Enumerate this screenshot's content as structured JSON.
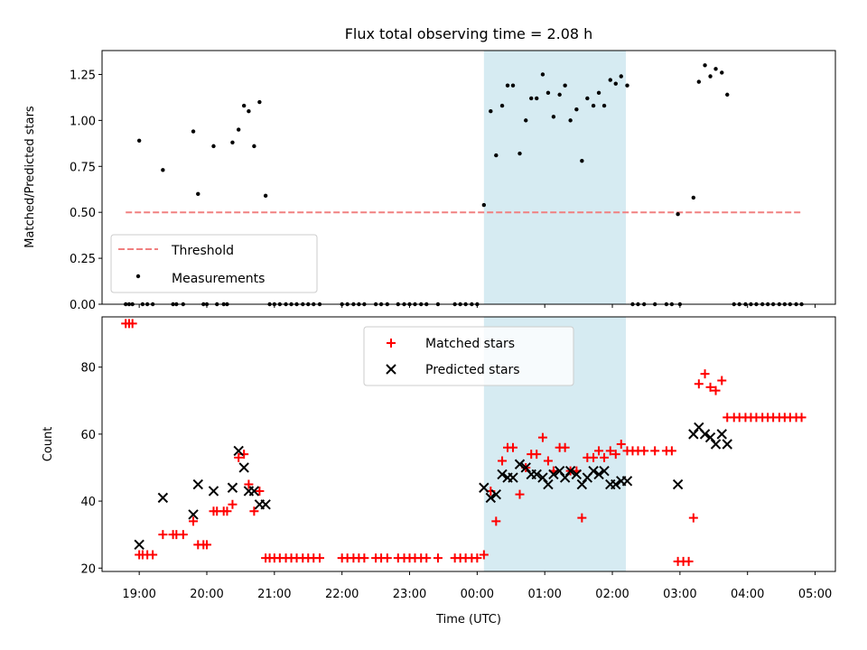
{
  "chart_data": [
    {
      "type": "scatter",
      "title": "Flux total observing time = 2.08 h",
      "xlabel": "",
      "ylabel": "Matched/Predicted stars",
      "xlim": [
        18.45,
        5.3
      ],
      "ylim": [
        0,
        1.38
      ],
      "yticks": [
        0.0,
        0.25,
        0.5,
        0.75,
        1.0,
        1.25
      ],
      "ytick_labels": [
        "0.00",
        "0.25",
        "0.50",
        "0.75",
        "1.00",
        "1.25"
      ],
      "shaded_interval": [
        0.1,
        2.2
      ],
      "threshold": {
        "name": "Threshold",
        "value": 0.5,
        "x_range": [
          18.8,
          4.8
        ],
        "color": "#f08080"
      },
      "legend": {
        "position": "lower-left",
        "entries": [
          "Threshold",
          "Measurements"
        ]
      },
      "series": [
        {
          "name": "Measurements",
          "color": "#000000",
          "points": [
            [
              18.8,
              0
            ],
            [
              18.85,
              0
            ],
            [
              18.9,
              0
            ],
            [
              19.0,
              0.89
            ],
            [
              19.05,
              0
            ],
            [
              19.12,
              0
            ],
            [
              19.2,
              0
            ],
            [
              19.35,
              0.73
            ],
            [
              19.5,
              0
            ],
            [
              19.55,
              0
            ],
            [
              19.65,
              0
            ],
            [
              19.8,
              0.94
            ],
            [
              19.87,
              0.6
            ],
            [
              19.95,
              0
            ],
            [
              20.0,
              0
            ],
            [
              20.1,
              0.86
            ],
            [
              20.15,
              0
            ],
            [
              20.25,
              0
            ],
            [
              20.3,
              0
            ],
            [
              20.38,
              0.88
            ],
            [
              20.47,
              0.95
            ],
            [
              20.55,
              1.08
            ],
            [
              20.62,
              1.05
            ],
            [
              20.7,
              0.86
            ],
            [
              20.78,
              1.1
            ],
            [
              20.87,
              0.59
            ],
            [
              20.93,
              0
            ],
            [
              21.0,
              0
            ],
            [
              21.08,
              0
            ],
            [
              21.17,
              0
            ],
            [
              21.25,
              0
            ],
            [
              21.33,
              0
            ],
            [
              21.42,
              0
            ],
            [
              21.5,
              0
            ],
            [
              21.58,
              0
            ],
            [
              21.67,
              0
            ],
            [
              22.0,
              0
            ],
            [
              22.08,
              0
            ],
            [
              22.17,
              0
            ],
            [
              22.25,
              0
            ],
            [
              22.33,
              0
            ],
            [
              22.5,
              0
            ],
            [
              22.58,
              0
            ],
            [
              22.67,
              0
            ],
            [
              22.83,
              0
            ],
            [
              22.92,
              0
            ],
            [
              23.0,
              0
            ],
            [
              23.08,
              0
            ],
            [
              23.17,
              0
            ],
            [
              23.25,
              0
            ],
            [
              23.42,
              0
            ],
            [
              23.67,
              0
            ],
            [
              23.75,
              0
            ],
            [
              23.83,
              0
            ],
            [
              23.92,
              0
            ],
            [
              24.0,
              0
            ],
            [
              0.1,
              0.54
            ],
            [
              0.2,
              1.05
            ],
            [
              0.28,
              0.81
            ],
            [
              0.37,
              1.08
            ],
            [
              0.45,
              1.19
            ],
            [
              0.53,
              1.19
            ],
            [
              0.63,
              0.82
            ],
            [
              0.72,
              1.0
            ],
            [
              0.8,
              1.12
            ],
            [
              0.88,
              1.12
            ],
            [
              0.97,
              1.25
            ],
            [
              1.05,
              1.15
            ],
            [
              1.13,
              1.02
            ],
            [
              1.22,
              1.14
            ],
            [
              1.3,
              1.19
            ],
            [
              1.38,
              1.0
            ],
            [
              1.47,
              1.06
            ],
            [
              1.55,
              0.78
            ],
            [
              1.63,
              1.12
            ],
            [
              1.72,
              1.08
            ],
            [
              1.8,
              1.15
            ],
            [
              1.88,
              1.08
            ],
            [
              1.97,
              1.22
            ],
            [
              2.05,
              1.2
            ],
            [
              2.13,
              1.24
            ],
            [
              2.22,
              1.19
            ],
            [
              2.3,
              0
            ],
            [
              2.38,
              0
            ],
            [
              2.47,
              0
            ],
            [
              2.63,
              0
            ],
            [
              2.8,
              0
            ],
            [
              2.88,
              0
            ],
            [
              2.97,
              0.49
            ],
            [
              3.0,
              0
            ],
            [
              3.2,
              0.58
            ],
            [
              3.28,
              1.21
            ],
            [
              3.37,
              1.3
            ],
            [
              3.45,
              1.24
            ],
            [
              3.53,
              1.28
            ],
            [
              3.62,
              1.26
            ],
            [
              3.7,
              1.14
            ],
            [
              3.8,
              0
            ],
            [
              3.88,
              0
            ],
            [
              3.97,
              0
            ],
            [
              4.05,
              0
            ],
            [
              4.13,
              0
            ],
            [
              4.22,
              0
            ],
            [
              4.3,
              0
            ],
            [
              4.38,
              0
            ],
            [
              4.47,
              0
            ],
            [
              4.55,
              0
            ],
            [
              4.63,
              0
            ],
            [
              4.72,
              0
            ],
            [
              4.8,
              0
            ]
          ]
        }
      ]
    },
    {
      "type": "scatter",
      "title": "",
      "xlabel": "Time (UTC)",
      "ylabel": "Count",
      "xlim": [
        18.45,
        5.3
      ],
      "ylim": [
        19,
        95
      ],
      "yticks": [
        20,
        40,
        60,
        80
      ],
      "ytick_labels": [
        "20",
        "40",
        "60",
        "80"
      ],
      "xticks": [
        19,
        20,
        21,
        22,
        23,
        0,
        1,
        2,
        3,
        4,
        5
      ],
      "xtick_labels": [
        "19:00",
        "20:00",
        "21:00",
        "22:00",
        "23:00",
        "00:00",
        "01:00",
        "02:00",
        "03:00",
        "04:00",
        "05:00"
      ],
      "shaded_interval": [
        0.1,
        2.2
      ],
      "legend": {
        "position": "top-center",
        "entries": [
          "Matched stars",
          "Predicted stars"
        ]
      },
      "series": [
        {
          "name": "Matched stars",
          "marker": "plus",
          "color": "#ff0000",
          "points": [
            [
              18.8,
              93
            ],
            [
              18.85,
              93
            ],
            [
              18.9,
              93
            ],
            [
              19.0,
              24
            ],
            [
              19.05,
              24
            ],
            [
              19.12,
              24
            ],
            [
              19.2,
              24
            ],
            [
              19.35,
              30
            ],
            [
              19.5,
              30
            ],
            [
              19.55,
              30
            ],
            [
              19.65,
              30
            ],
            [
              19.8,
              34
            ],
            [
              19.87,
              27
            ],
            [
              19.95,
              27
            ],
            [
              20.0,
              27
            ],
            [
              20.1,
              37
            ],
            [
              20.15,
              37
            ],
            [
              20.25,
              37
            ],
            [
              20.3,
              37
            ],
            [
              20.38,
              39
            ],
            [
              20.47,
              53
            ],
            [
              20.55,
              54
            ],
            [
              20.62,
              45
            ],
            [
              20.7,
              37
            ],
            [
              20.78,
              43
            ],
            [
              20.87,
              23
            ],
            [
              20.93,
              23
            ],
            [
              21.0,
              23
            ],
            [
              21.08,
              23
            ],
            [
              21.17,
              23
            ],
            [
              21.25,
              23
            ],
            [
              21.33,
              23
            ],
            [
              21.42,
              23
            ],
            [
              21.5,
              23
            ],
            [
              21.58,
              23
            ],
            [
              21.67,
              23
            ],
            [
              22.0,
              23
            ],
            [
              22.08,
              23
            ],
            [
              22.17,
              23
            ],
            [
              22.25,
              23
            ],
            [
              22.33,
              23
            ],
            [
              22.5,
              23
            ],
            [
              22.58,
              23
            ],
            [
              22.67,
              23
            ],
            [
              22.83,
              23
            ],
            [
              22.92,
              23
            ],
            [
              23.0,
              23
            ],
            [
              23.08,
              23
            ],
            [
              23.17,
              23
            ],
            [
              23.25,
              23
            ],
            [
              23.42,
              23
            ],
            [
              23.67,
              23
            ],
            [
              23.75,
              23
            ],
            [
              23.83,
              23
            ],
            [
              23.92,
              23
            ],
            [
              24.0,
              23
            ],
            [
              0.1,
              24
            ],
            [
              0.2,
              43
            ],
            [
              0.28,
              34
            ],
            [
              0.37,
              52
            ],
            [
              0.45,
              56
            ],
            [
              0.53,
              56
            ],
            [
              0.63,
              42
            ],
            [
              0.72,
              50
            ],
            [
              0.8,
              54
            ],
            [
              0.88,
              54
            ],
            [
              0.97,
              59
            ],
            [
              1.05,
              52
            ],
            [
              1.13,
              49
            ],
            [
              1.22,
              56
            ],
            [
              1.3,
              56
            ],
            [
              1.38,
              49
            ],
            [
              1.47,
              49
            ],
            [
              1.55,
              35
            ],
            [
              1.63,
              53
            ],
            [
              1.72,
              53
            ],
            [
              1.8,
              55
            ],
            [
              1.88,
              53
            ],
            [
              1.97,
              55
            ],
            [
              2.05,
              54
            ],
            [
              2.13,
              57
            ],
            [
              2.22,
              55
            ],
            [
              2.3,
              55
            ],
            [
              2.38,
              55
            ],
            [
              2.47,
              55
            ],
            [
              2.63,
              55
            ],
            [
              2.8,
              55
            ],
            [
              2.88,
              55
            ],
            [
              2.97,
              22
            ],
            [
              3.05,
              22
            ],
            [
              3.13,
              22
            ],
            [
              3.2,
              35
            ],
            [
              3.28,
              75
            ],
            [
              3.37,
              78
            ],
            [
              3.45,
              74
            ],
            [
              3.53,
              73
            ],
            [
              3.62,
              76
            ],
            [
              3.7,
              65
            ],
            [
              3.8,
              65
            ],
            [
              3.88,
              65
            ],
            [
              3.97,
              65
            ],
            [
              4.05,
              65
            ],
            [
              4.13,
              65
            ],
            [
              4.22,
              65
            ],
            [
              4.3,
              65
            ],
            [
              4.38,
              65
            ],
            [
              4.47,
              65
            ],
            [
              4.55,
              65
            ],
            [
              4.63,
              65
            ],
            [
              4.72,
              65
            ],
            [
              4.8,
              65
            ]
          ]
        },
        {
          "name": "Predicted stars",
          "marker": "x",
          "color": "#000000",
          "points": [
            [
              19.0,
              27
            ],
            [
              19.35,
              41
            ],
            [
              19.8,
              36
            ],
            [
              19.87,
              45
            ],
            [
              20.1,
              43
            ],
            [
              20.38,
              44
            ],
            [
              20.47,
              55
            ],
            [
              20.55,
              50
            ],
            [
              20.62,
              43
            ],
            [
              20.7,
              43
            ],
            [
              20.78,
              39
            ],
            [
              20.87,
              39
            ],
            [
              0.1,
              44
            ],
            [
              0.2,
              41
            ],
            [
              0.28,
              42
            ],
            [
              0.37,
              48
            ],
            [
              0.45,
              47
            ],
            [
              0.53,
              47
            ],
            [
              0.63,
              51
            ],
            [
              0.72,
              50
            ],
            [
              0.8,
              48
            ],
            [
              0.88,
              48
            ],
            [
              0.97,
              47
            ],
            [
              1.05,
              45
            ],
            [
              1.13,
              48
            ],
            [
              1.22,
              49
            ],
            [
              1.3,
              47
            ],
            [
              1.38,
              49
            ],
            [
              1.47,
              48
            ],
            [
              1.55,
              45
            ],
            [
              1.63,
              47
            ],
            [
              1.72,
              49
            ],
            [
              1.8,
              48
            ],
            [
              1.88,
              49
            ],
            [
              1.97,
              45
            ],
            [
              2.05,
              45
            ],
            [
              2.13,
              46
            ],
            [
              2.22,
              46
            ],
            [
              2.97,
              45
            ],
            [
              3.2,
              60
            ],
            [
              3.28,
              62
            ],
            [
              3.37,
              60
            ],
            [
              3.45,
              59
            ],
            [
              3.53,
              57
            ],
            [
              3.62,
              60
            ],
            [
              3.7,
              57
            ]
          ]
        }
      ]
    }
  ]
}
